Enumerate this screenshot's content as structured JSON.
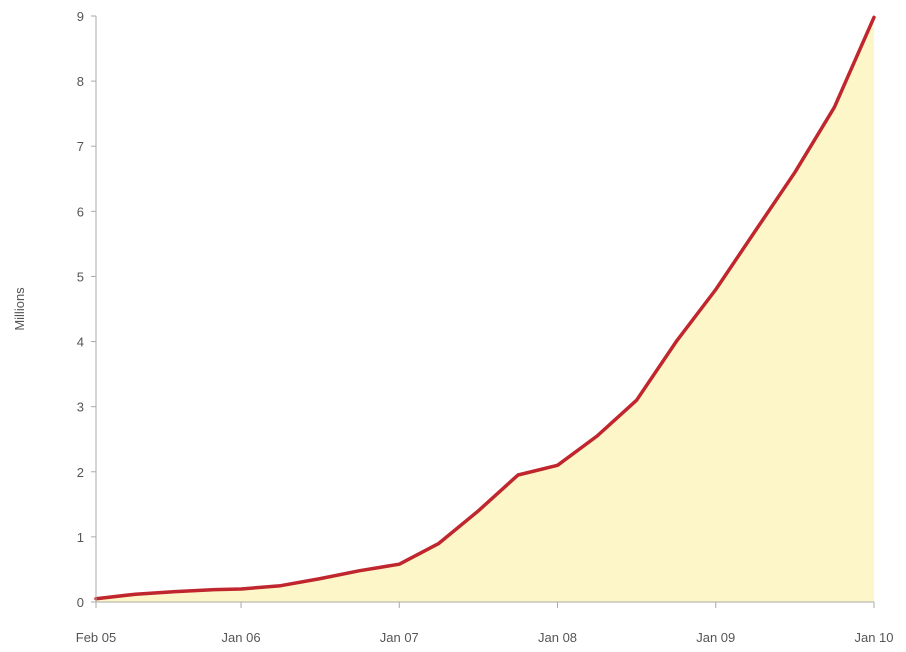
{
  "chart_data": {
    "type": "area",
    "title": "",
    "xlabel": "",
    "ylabel": "Millions",
    "ylim": [
      0,
      9
    ],
    "yticks": [
      0,
      1,
      2,
      3,
      4,
      5,
      6,
      7,
      8,
      9
    ],
    "xticks": [
      {
        "date": "2005-02",
        "label": "Feb 05"
      },
      {
        "date": "2006-01",
        "label": "Jan 06"
      },
      {
        "date": "2007-01",
        "label": "Jan 07"
      },
      {
        "date": "2008-01",
        "label": "Jan 08"
      },
      {
        "date": "2009-01",
        "label": "Jan 09"
      },
      {
        "date": "2010-01",
        "label": "Jan 10"
      }
    ],
    "grid": false,
    "colors": {
      "line": "#c0262d",
      "fill": "#fcf6c8",
      "axis": "#aaaaaa"
    },
    "series": [
      {
        "x": [
          "2005-02",
          "2005-05",
          "2005-08",
          "2005-11",
          "2006-01",
          "2006-04",
          "2006-07",
          "2006-10",
          "2007-01",
          "2007-04",
          "2007-07",
          "2007-10",
          "2008-01",
          "2008-04",
          "2008-07",
          "2008-10",
          "2009-01",
          "2009-04",
          "2009-07",
          "2009-10",
          "2010-01"
        ],
        "y": [
          0.05,
          0.12,
          0.16,
          0.19,
          0.2,
          0.25,
          0.36,
          0.48,
          0.58,
          0.9,
          1.4,
          1.95,
          2.1,
          2.55,
          3.1,
          4.0,
          4.8,
          5.7,
          6.6,
          7.6,
          8.98
        ]
      }
    ]
  }
}
